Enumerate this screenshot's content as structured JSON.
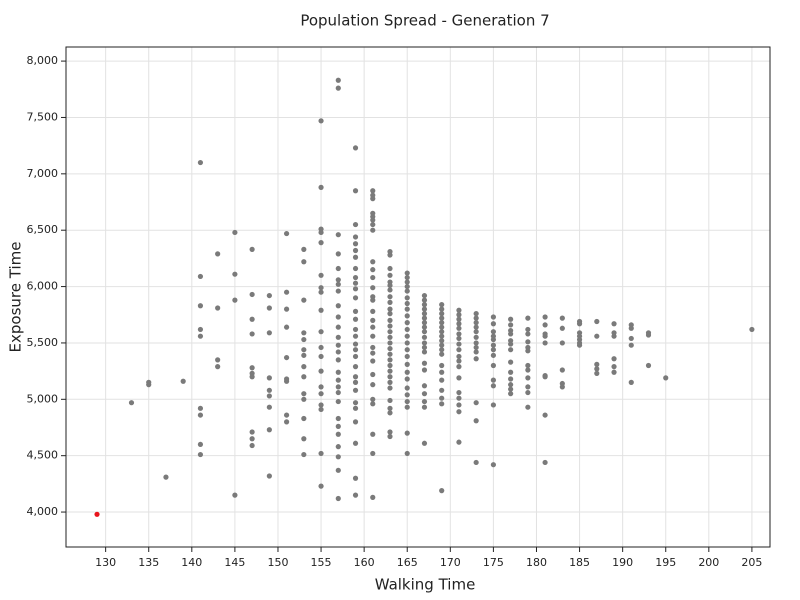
{
  "chart_data": {
    "type": "scatter",
    "title": "Population Spread - Generation 7",
    "x_label": "Walking Time",
    "y_label": "Exposure Time",
    "xlim": [
      125.4,
      207.1
    ],
    "ylim": [
      3690,
      8125
    ],
    "xticks": [
      130,
      135,
      140,
      145,
      150,
      155,
      160,
      165,
      170,
      175,
      180,
      185,
      190,
      195,
      200,
      205
    ],
    "yticks": [
      {
        "value": 4000,
        "label": "4,000"
      },
      {
        "value": 4500,
        "label": "4,500"
      },
      {
        "value": 5000,
        "label": "5,000"
      },
      {
        "value": 5500,
        "label": "5,500"
      },
      {
        "value": 6000,
        "label": "6,000"
      },
      {
        "value": 6500,
        "label": "6,500"
      },
      {
        "value": 7000,
        "label": "7,000"
      },
      {
        "value": 7500,
        "label": "7,500"
      },
      {
        "value": 8000,
        "label": "8,000"
      }
    ],
    "grid": true,
    "series": [
      {
        "color": "#7a7a7a",
        "x": [
          133,
          135,
          135,
          137,
          139,
          141,
          141,
          141,
          141,
          141,
          141,
          141,
          141,
          141,
          143,
          143,
          143,
          143,
          145,
          145,
          145,
          145,
          147,
          147,
          147,
          147,
          147,
          147,
          147,
          147,
          147,
          147,
          149,
          149,
          149,
          149,
          149,
          149,
          149,
          149,
          149,
          151,
          151,
          151,
          151,
          151,
          151,
          151,
          151,
          151,
          153,
          153,
          153,
          153,
          153,
          153,
          153,
          153,
          153,
          153,
          153,
          153,
          153,
          153,
          155,
          155,
          155,
          155,
          155,
          155,
          155,
          155,
          155,
          155,
          155,
          155,
          155,
          155,
          155,
          155,
          155,
          155,
          155,
          157,
          157,
          157,
          157,
          157,
          157,
          157,
          157,
          157,
          157,
          157,
          157,
          157,
          157,
          157,
          157,
          157,
          157,
          157,
          157,
          157,
          157,
          157,
          157,
          157,
          157,
          157,
          159,
          159,
          159,
          159,
          159,
          159,
          159,
          159,
          159,
          159,
          159,
          159,
          159,
          159,
          159,
          159,
          159,
          159,
          159,
          159,
          159,
          159,
          159,
          159,
          159,
          159,
          159,
          159,
          159,
          161,
          161,
          161,
          161,
          161,
          161,
          161,
          161,
          161,
          161,
          161,
          161,
          161,
          161,
          161,
          161,
          161,
          161,
          161,
          161,
          161,
          161,
          161,
          161,
          161,
          161,
          161,
          161,
          163,
          163,
          163,
          163,
          163,
          163,
          163,
          163,
          163,
          163,
          163,
          163,
          163,
          163,
          163,
          163,
          163,
          163,
          163,
          163,
          163,
          163,
          163,
          163,
          163,
          163,
          163,
          163,
          163,
          165,
          165,
          165,
          165,
          165,
          165,
          165,
          165,
          165,
          165,
          165,
          165,
          165,
          165,
          165,
          165,
          165,
          165,
          165,
          165,
          165,
          165,
          165,
          165,
          167,
          167,
          167,
          167,
          167,
          167,
          167,
          167,
          167,
          167,
          167,
          167,
          167,
          167,
          167,
          167,
          167,
          167,
          167,
          167,
          169,
          169,
          169,
          169,
          169,
          169,
          169,
          169,
          169,
          169,
          169,
          169,
          169,
          169,
          169,
          169,
          169,
          169,
          169,
          171,
          171,
          171,
          171,
          171,
          171,
          171,
          171,
          171,
          171,
          171,
          171,
          171,
          171,
          171,
          171,
          171,
          171,
          173,
          173,
          173,
          173,
          173,
          173,
          173,
          173,
          173,
          173,
          173,
          173,
          173,
          175,
          175,
          175,
          175,
          175,
          175,
          175,
          175,
          175,
          175,
          175,
          175,
          175,
          177,
          177,
          177,
          177,
          177,
          177,
          177,
          177,
          177,
          177,
          177,
          177,
          177,
          179,
          179,
          179,
          179,
          179,
          179,
          179,
          179,
          179,
          179,
          179,
          179,
          181,
          181,
          181,
          181,
          181,
          181,
          181,
          181,
          181,
          183,
          183,
          183,
          183,
          183,
          183,
          185,
          185,
          185,
          185,
          185,
          185,
          185,
          187,
          187,
          187,
          187,
          187,
          189,
          189,
          189,
          189,
          189,
          189,
          191,
          191,
          191,
          191,
          191,
          193,
          193,
          193,
          195,
          205
        ],
        "values": [
          4970,
          5130,
          5150,
          4310,
          5160,
          7100,
          6090,
          5830,
          5620,
          5560,
          4920,
          4860,
          4600,
          4510,
          6290,
          5810,
          5350,
          5290,
          6480,
          6110,
          5880,
          4150,
          6330,
          5930,
          5710,
          5580,
          5280,
          5230,
          5200,
          4710,
          4650,
          4590,
          5920,
          5810,
          5590,
          5190,
          5080,
          5030,
          4930,
          4730,
          4320,
          6470,
          5950,
          5800,
          5640,
          5370,
          5180,
          5160,
          4860,
          4800,
          6330,
          6220,
          5880,
          5590,
          5530,
          5440,
          5390,
          5290,
          5200,
          5050,
          5000,
          4830,
          4650,
          4510,
          7470,
          6880,
          6510,
          6480,
          6390,
          6100,
          5990,
          5950,
          5790,
          5600,
          5460,
          5380,
          5250,
          5110,
          5050,
          4950,
          4910,
          4520,
          4230,
          7830,
          7760,
          6460,
          6290,
          6160,
          6060,
          6020,
          5960,
          5830,
          5730,
          5640,
          5550,
          5480,
          5420,
          5350,
          5240,
          5170,
          5110,
          5060,
          4980,
          4830,
          4760,
          4690,
          4580,
          4490,
          4370,
          4120,
          7230,
          6850,
          6550,
          6440,
          6380,
          6320,
          6260,
          6160,
          6080,
          6030,
          5980,
          5900,
          5780,
          5710,
          5620,
          5560,
          5490,
          5440,
          5380,
          5290,
          5200,
          5150,
          5080,
          4970,
          4920,
          4800,
          4610,
          4300,
          4150,
          6850,
          6810,
          6780,
          6650,
          6620,
          6590,
          6550,
          6500,
          6220,
          6150,
          6080,
          5990,
          5910,
          5880,
          5780,
          5700,
          5640,
          5560,
          5460,
          5410,
          5340,
          5220,
          5130,
          5000,
          4960,
          4690,
          4520,
          4130,
          6310,
          6280,
          6160,
          6100,
          6040,
          6010,
          5970,
          5910,
          5860,
          5800,
          5760,
          5700,
          5650,
          5600,
          5550,
          5500,
          5450,
          5400,
          5350,
          5300,
          5250,
          5200,
          5150,
          5100,
          4990,
          4920,
          4880,
          4710,
          4670,
          6120,
          6080,
          6040,
          6000,
          5960,
          5900,
          5850,
          5800,
          5740,
          5680,
          5620,
          5560,
          5500,
          5440,
          5380,
          5310,
          5240,
          5180,
          5100,
          5040,
          4980,
          4930,
          4700,
          4520,
          5920,
          5880,
          5840,
          5800,
          5760,
          5720,
          5680,
          5640,
          5600,
          5550,
          5500,
          5460,
          5420,
          5320,
          5260,
          5120,
          5050,
          4980,
          4930,
          4610,
          5840,
          5800,
          5760,
          5720,
          5680,
          5640,
          5600,
          5560,
          5520,
          5480,
          5440,
          5400,
          5300,
          5240,
          5170,
          5080,
          5010,
          4960,
          4190,
          5790,
          5750,
          5710,
          5670,
          5630,
          5580,
          5540,
          5490,
          5440,
          5380,
          5340,
          5290,
          5190,
          5060,
          5010,
          4950,
          4890,
          4620,
          5760,
          5720,
          5680,
          5640,
          5600,
          5550,
          5500,
          5460,
          5420,
          5360,
          4970,
          4810,
          4440,
          5730,
          5670,
          5600,
          5560,
          5530,
          5480,
          5440,
          5390,
          5300,
          5170,
          5120,
          4950,
          4420,
          5710,
          5660,
          5610,
          5580,
          5520,
          5490,
          5440,
          5330,
          5240,
          5180,
          5130,
          5090,
          5050,
          5720,
          5620,
          5580,
          5510,
          5460,
          5430,
          5300,
          5260,
          5190,
          5110,
          5060,
          4930,
          5730,
          5660,
          5580,
          5560,
          5500,
          5210,
          5200,
          4860,
          4440,
          5720,
          5630,
          5500,
          5260,
          5140,
          5110,
          5690,
          5670,
          5590,
          5560,
          5530,
          5500,
          5480,
          5690,
          5560,
          5310,
          5270,
          5230,
          5670,
          5590,
          5560,
          5360,
          5290,
          5240,
          5660,
          5630,
          5540,
          5480,
          5150,
          5590,
          5570,
          5300,
          5190,
          5620
        ]
      },
      {
        "color": "#e8141c",
        "x": [
          129
        ],
        "values": [
          3980
        ]
      }
    ]
  }
}
